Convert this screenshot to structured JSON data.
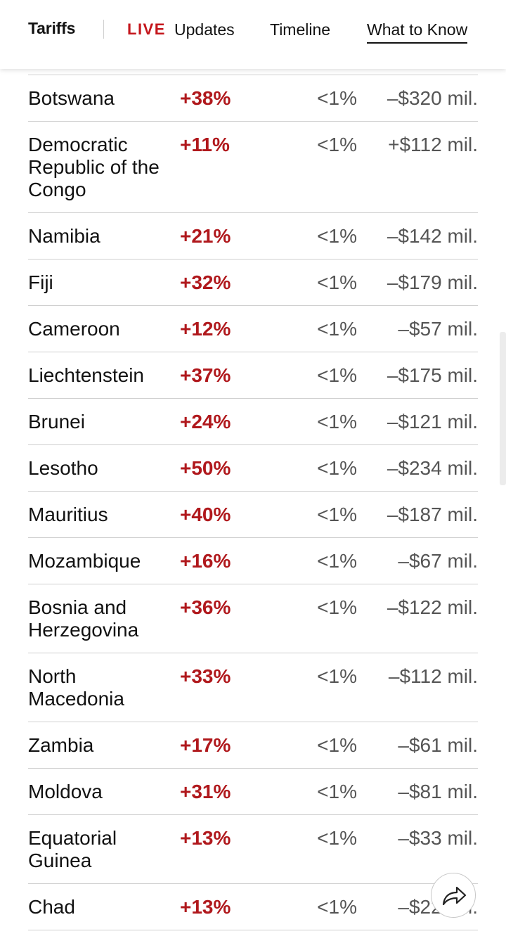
{
  "nav": {
    "section": "Tariffs",
    "live_label": "LIVE",
    "updates_label": "Updates",
    "timeline_label": "Timeline",
    "what_to_know_label": "What to Know"
  },
  "table": {
    "rows": [
      {
        "country": "Botswana",
        "change": "+38%",
        "share": "<1%",
        "impact": "–$320 mil."
      },
      {
        "country": "Democratic Republic of the Congo",
        "change": "+11%",
        "share": "<1%",
        "impact": "+$112 mil."
      },
      {
        "country": "Namibia",
        "change": "+21%",
        "share": "<1%",
        "impact": "–$142 mil."
      },
      {
        "country": "Fiji",
        "change": "+32%",
        "share": "<1%",
        "impact": "–$179 mil."
      },
      {
        "country": "Cameroon",
        "change": "+12%",
        "share": "<1%",
        "impact": "–$57 mil."
      },
      {
        "country": "Liechtenstein",
        "change": "+37%",
        "share": "<1%",
        "impact": "–$175 mil."
      },
      {
        "country": "Brunei",
        "change": "+24%",
        "share": "<1%",
        "impact": "–$121 mil."
      },
      {
        "country": "Lesotho",
        "change": "+50%",
        "share": "<1%",
        "impact": "–$234 mil."
      },
      {
        "country": "Mauritius",
        "change": "+40%",
        "share": "<1%",
        "impact": "–$187 mil."
      },
      {
        "country": "Mozambique",
        "change": "+16%",
        "share": "<1%",
        "impact": "–$67 mil."
      },
      {
        "country": "Bosnia and Herzegovina",
        "change": "+36%",
        "share": "<1%",
        "impact": "–$122 mil."
      },
      {
        "country": "North Macedonia",
        "change": "+33%",
        "share": "<1%",
        "impact": "–$112 mil."
      },
      {
        "country": "Zambia",
        "change": "+17%",
        "share": "<1%",
        "impact": "–$61 mil."
      },
      {
        "country": "Moldova",
        "change": "+31%",
        "share": "<1%",
        "impact": "–$81 mil."
      },
      {
        "country": "Equatorial Guinea",
        "change": "+13%",
        "share": "<1%",
        "impact": "–$33 mil."
      },
      {
        "country": "Chad",
        "change": "+13%",
        "share": "<1%",
        "impact": "–$22 mil."
      }
    ]
  },
  "share_button": {
    "icon": "share-arrow-icon"
  },
  "colors": {
    "accent_red": "#b0181c",
    "live_red": "#c4161c"
  }
}
